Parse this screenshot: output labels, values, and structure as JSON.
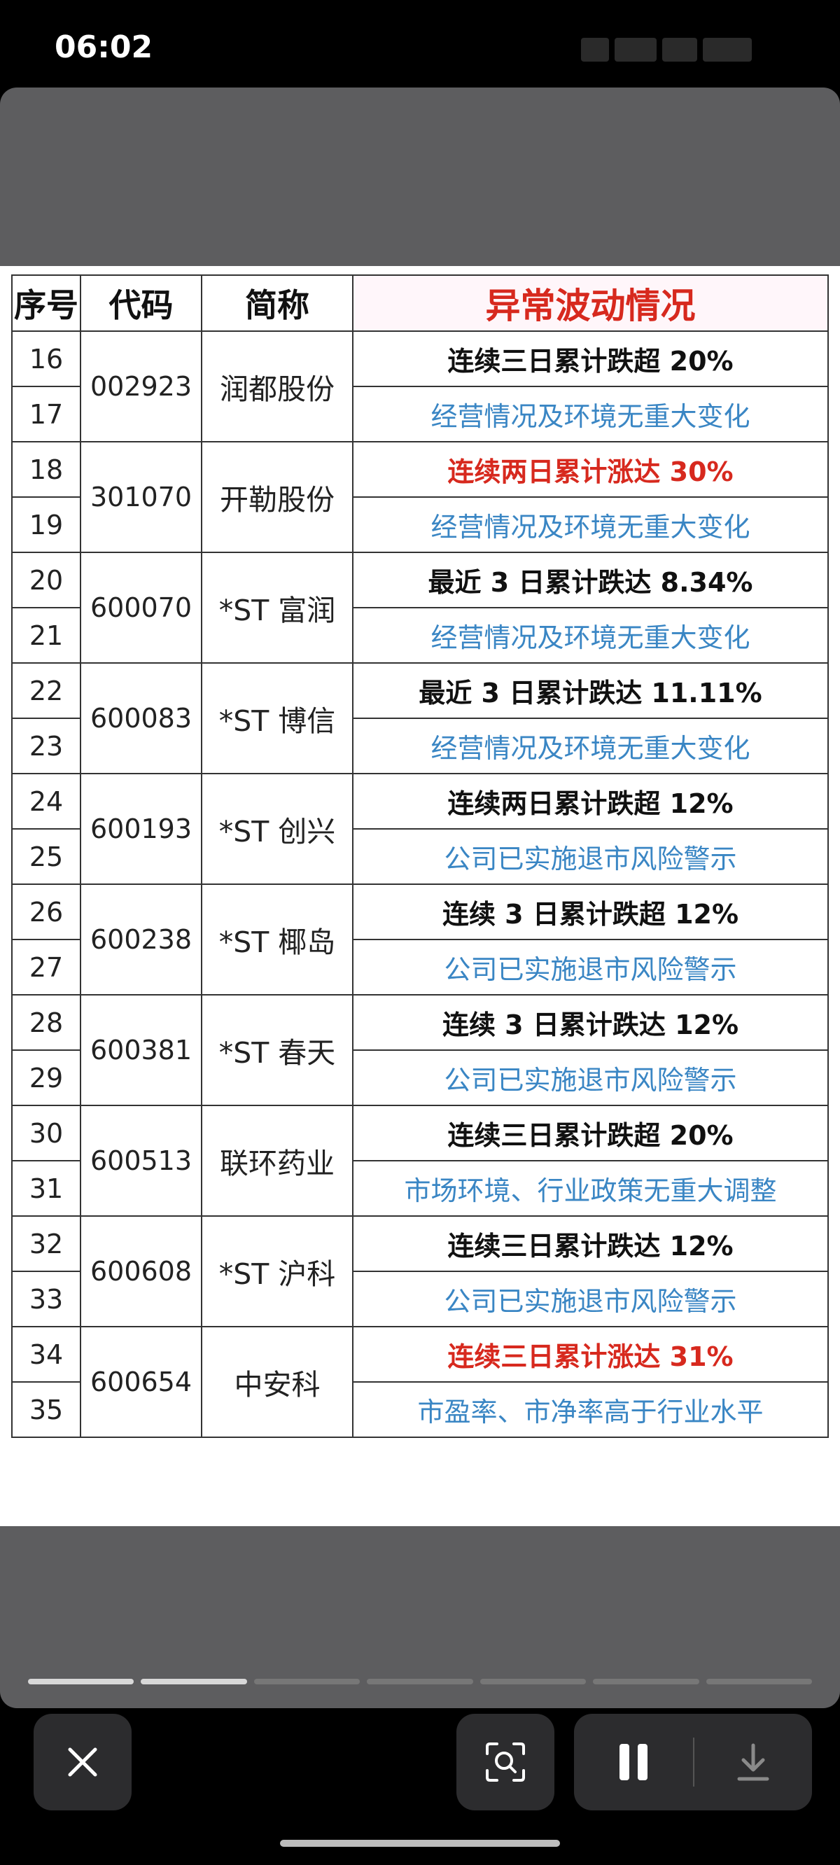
{
  "status_bar": {
    "time": "06:02"
  },
  "table": {
    "headers": [
      "序号",
      "代码",
      "简称",
      "异常波动情况"
    ],
    "groups": [
      {
        "seq": [
          "16",
          "17"
        ],
        "code": "002923",
        "name": "润都股份",
        "line1": {
          "text": "连续三日累计跌超 20%",
          "color": "black"
        },
        "line2": {
          "text": "经营情况及环境无重大变化",
          "color": "blue"
        }
      },
      {
        "seq": [
          "18",
          "19"
        ],
        "code": "301070",
        "name": "开勒股份",
        "line1": {
          "text": "连续两日累计涨达 30%",
          "color": "red"
        },
        "line2": {
          "text": "经营情况及环境无重大变化",
          "color": "blue"
        }
      },
      {
        "seq": [
          "20",
          "21"
        ],
        "code": "600070",
        "name": "*ST 富润",
        "line1": {
          "text": "最近 3 日累计跌达 8.34%",
          "color": "black"
        },
        "line2": {
          "text": "经营情况及环境无重大变化",
          "color": "blue"
        }
      },
      {
        "seq": [
          "22",
          "23"
        ],
        "code": "600083",
        "name": "*ST 博信",
        "line1": {
          "text": "最近 3 日累计跌达 11.11%",
          "color": "black"
        },
        "line2": {
          "text": "经营情况及环境无重大变化",
          "color": "blue"
        }
      },
      {
        "seq": [
          "24",
          "25"
        ],
        "code": "600193",
        "name": "*ST 创兴",
        "line1": {
          "text": "连续两日累计跌超 12%",
          "color": "black"
        },
        "line2": {
          "text": "公司已实施退市风险警示",
          "color": "blue"
        }
      },
      {
        "seq": [
          "26",
          "27"
        ],
        "code": "600238",
        "name": "*ST 椰岛",
        "line1": {
          "text": "连续 3 日累计跌超 12%",
          "color": "black"
        },
        "line2": {
          "text": "公司已实施退市风险警示",
          "color": "blue"
        }
      },
      {
        "seq": [
          "28",
          "29"
        ],
        "code": "600381",
        "name": "*ST 春天",
        "line1": {
          "text": "连续 3 日累计跌达 12%",
          "color": "black"
        },
        "line2": {
          "text": "公司已实施退市风险警示",
          "color": "blue"
        }
      },
      {
        "seq": [
          "30",
          "31"
        ],
        "code": "600513",
        "name": "联环药业",
        "line1": {
          "text": "连续三日累计跌超 20%",
          "color": "black"
        },
        "line2": {
          "text": "市场环境、行业政策无重大调整",
          "color": "blue"
        }
      },
      {
        "seq": [
          "32",
          "33"
        ],
        "code": "600608",
        "name": "*ST 沪科",
        "line1": {
          "text": "连续三日累计跌达 12%",
          "color": "black"
        },
        "line2": {
          "text": "公司已实施退市风险警示",
          "color": "blue"
        }
      },
      {
        "seq": [
          "34",
          "35"
        ],
        "code": "600654",
        "name": "中安科",
        "line1": {
          "text": "连续三日累计涨达 31%",
          "color": "red"
        },
        "line2": {
          "text": "市盈率、市净率高于行业水平",
          "color": "blue"
        }
      }
    ]
  },
  "progress": {
    "total_segments": 7,
    "completed_segments": 2
  },
  "controls": {
    "close_icon": "close-icon",
    "lens_icon": "image-search-icon",
    "pause_icon": "pause-icon",
    "download_icon": "download-icon"
  },
  "colors": {
    "red": "#d7291e",
    "blue": "#3a86c4",
    "black": "#111111"
  }
}
